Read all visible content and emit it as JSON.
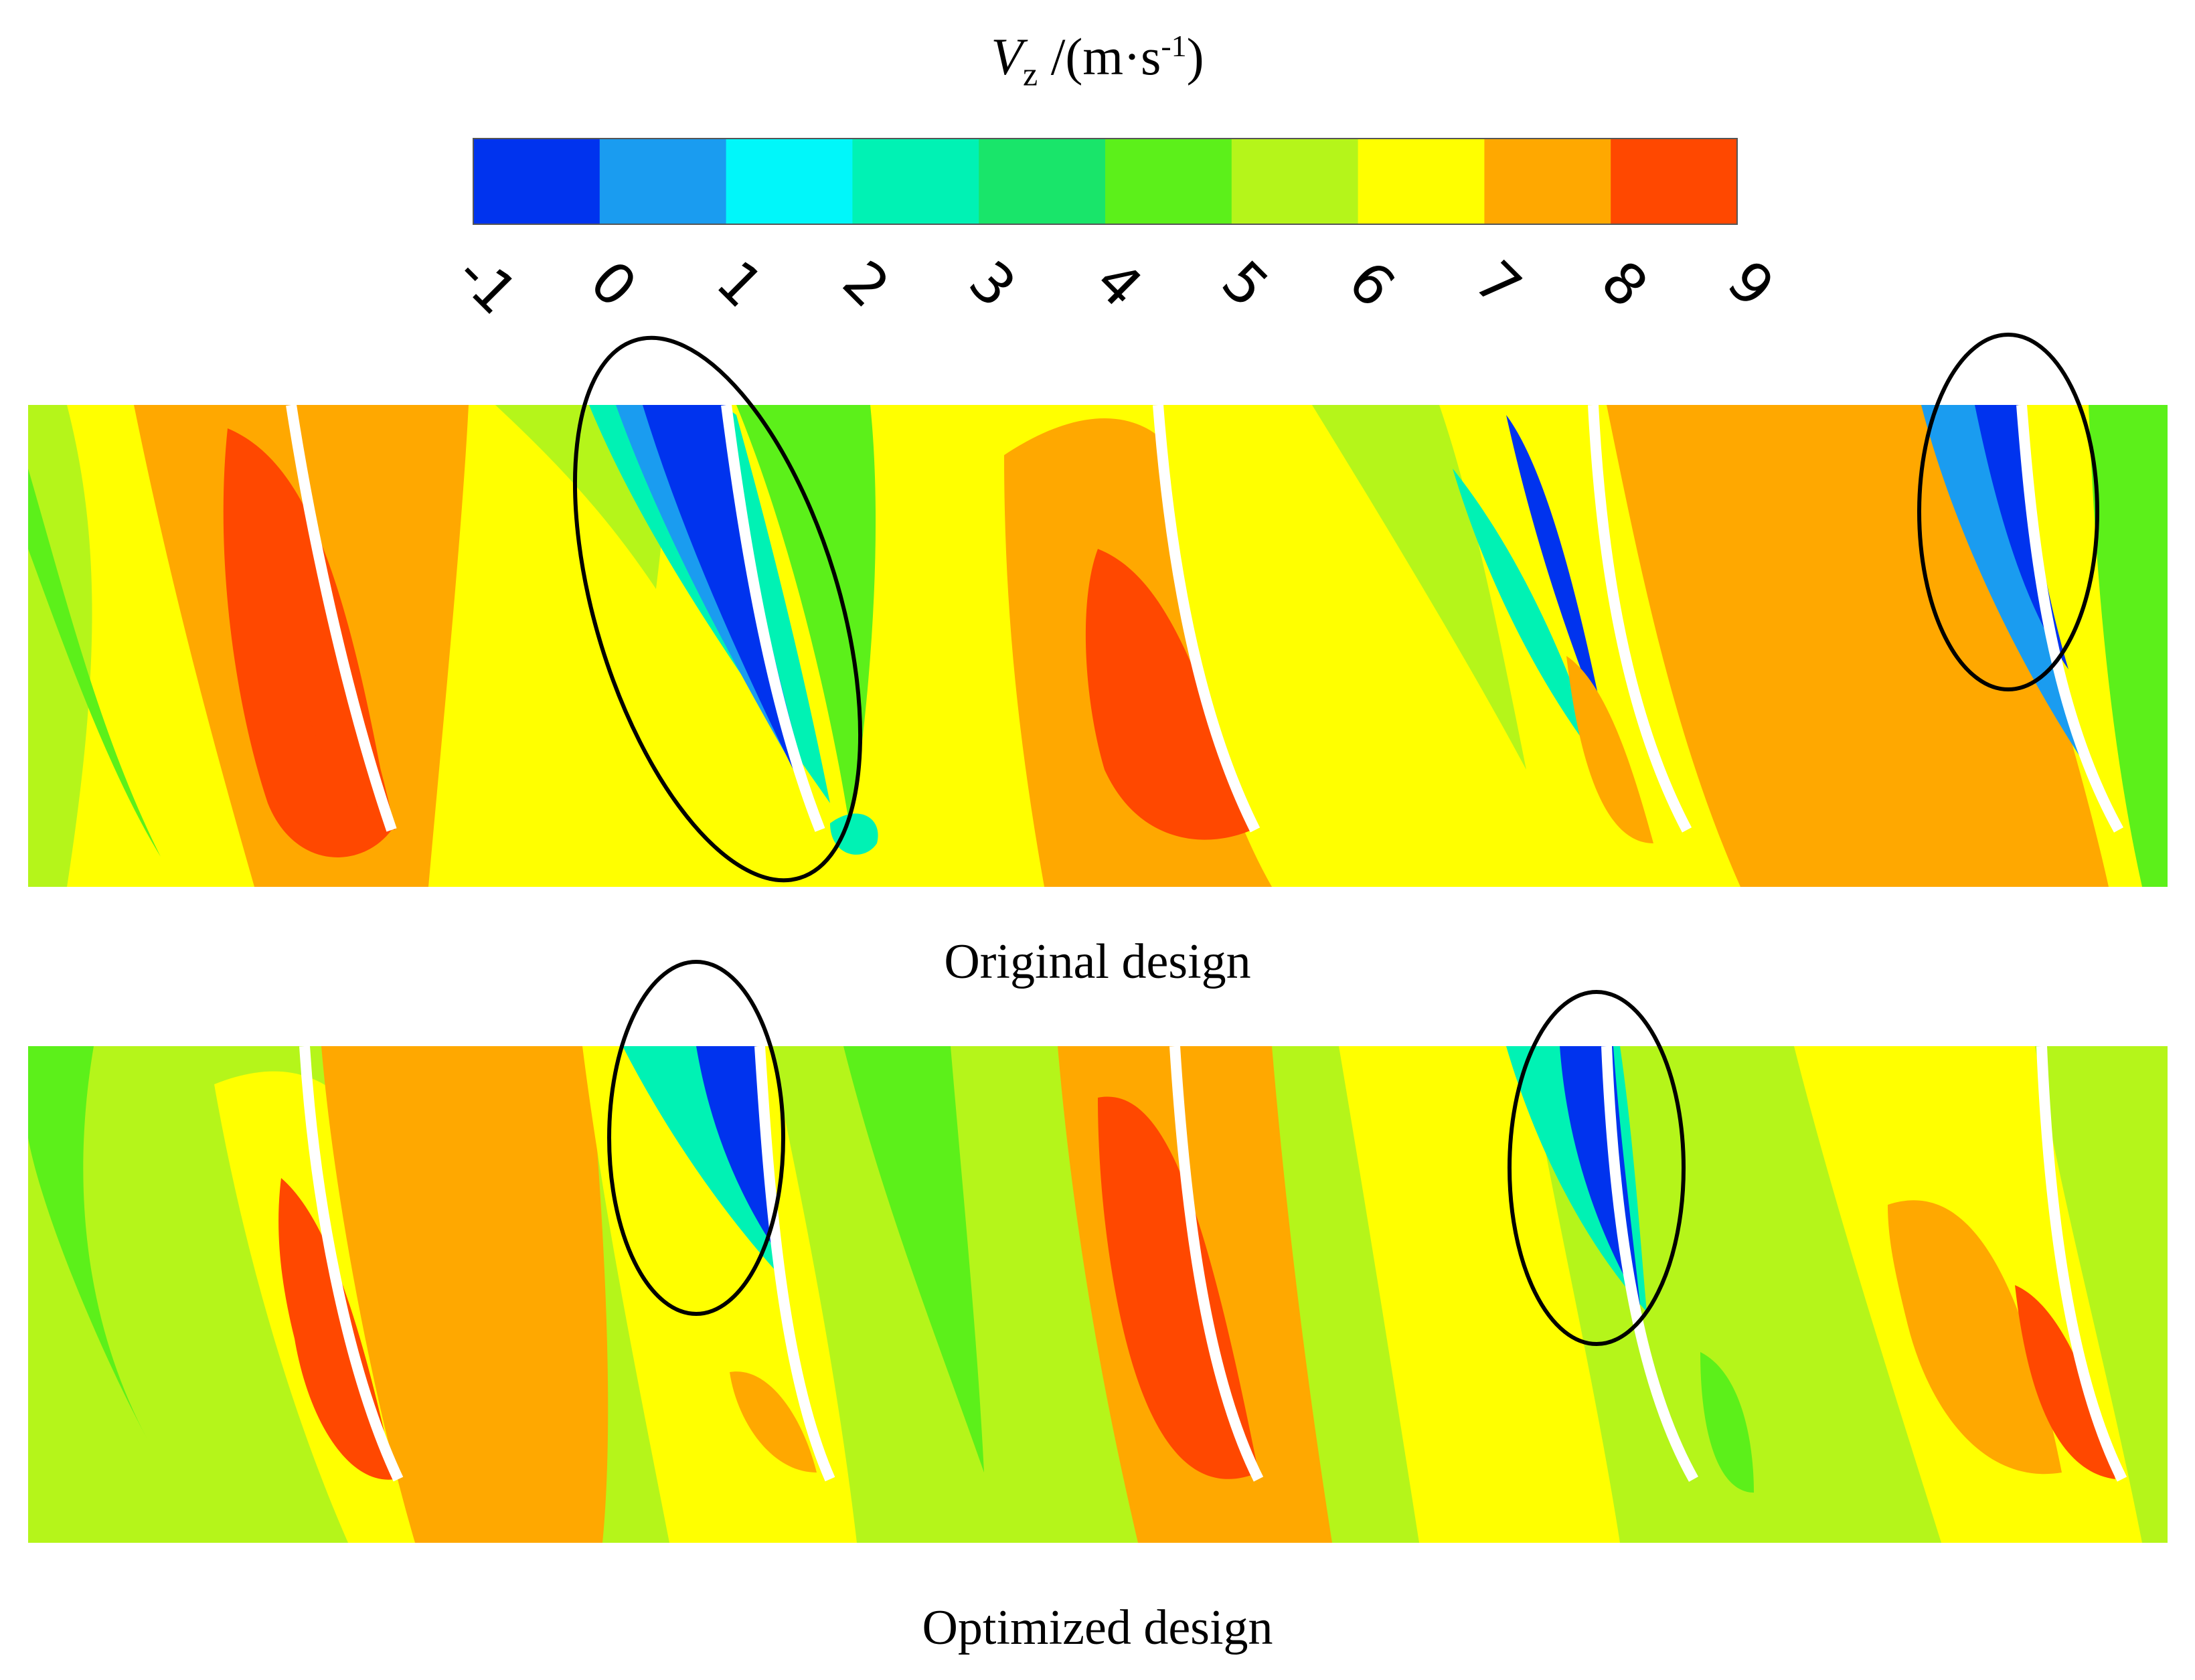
{
  "colorbar": {
    "title_var": "V",
    "title_sub": "z",
    "title_unit_pre": " /(m·s",
    "title_sup": "-1",
    "title_unit_post": ")",
    "ticks": [
      "-1",
      "0",
      "1",
      "2",
      "3",
      "4",
      "5",
      "6",
      "7",
      "8",
      "9"
    ],
    "colors": [
      "#0033ee",
      "#1a9cf0",
      "#00f7fa",
      "#00f2b4",
      "#19e56a",
      "#5cf01a",
      "#b5f51a",
      "#ffff00",
      "#ffa800",
      "#ff4800"
    ]
  },
  "panels": [
    {
      "caption": "Original design"
    },
    {
      "caption": "Optimized design"
    }
  ]
}
